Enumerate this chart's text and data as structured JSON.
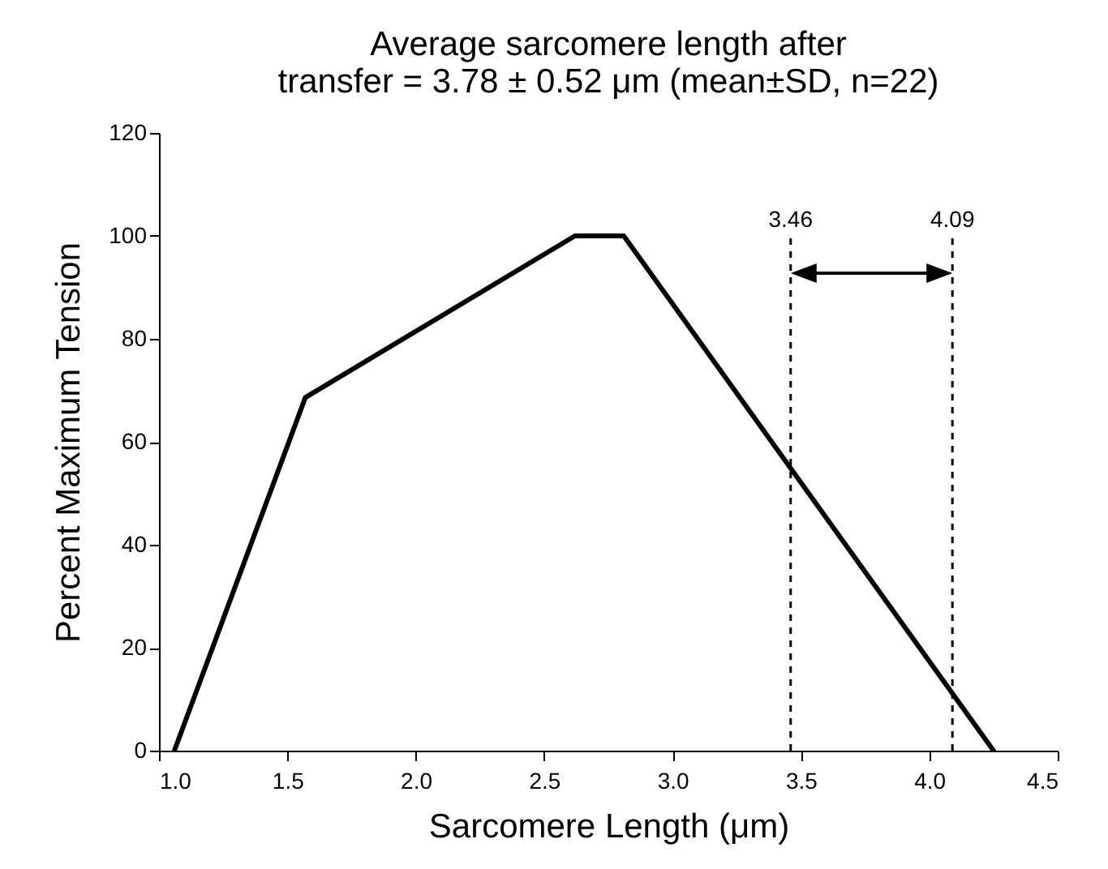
{
  "chart_data": {
    "type": "line",
    "title": "Average sarcomere length after\ntransfer = 3.78 ± 0.52 μm (mean±SD, n=22)",
    "xlabel": "Sarcomere Length (μm)",
    "ylabel": "Percent Maximum Tension",
    "x": [
      1.06,
      1.57,
      2.62,
      2.81,
      4.25
    ],
    "series": [
      {
        "color": "#000000",
        "values": [
          0,
          68.6,
          100,
          100,
          0
        ]
      }
    ],
    "xlim": [
      1.0,
      4.5
    ],
    "xticks": [
      {
        "value": 1,
        "label": "1.0"
      },
      1.5,
      {
        "value": 2,
        "label": "2.0"
      },
      2.5,
      {
        "value": 3,
        "label": "3.0"
      },
      3.5,
      {
        "value": 4,
        "label": "4.0"
      },
      4.5
    ],
    "ylim": [
      0,
      120
    ],
    "yticks": [
      0,
      20,
      40,
      60,
      80,
      100,
      120
    ],
    "grid": false,
    "ref_lines": [
      {
        "axis": "x",
        "value": 3.46,
        "label": "3.46",
        "color": "#000000",
        "line_style": "dashed"
      },
      {
        "axis": "x",
        "value": 4.09,
        "label": "4.09",
        "color": "#000000",
        "line_style": "dashed"
      }
    ]
  }
}
